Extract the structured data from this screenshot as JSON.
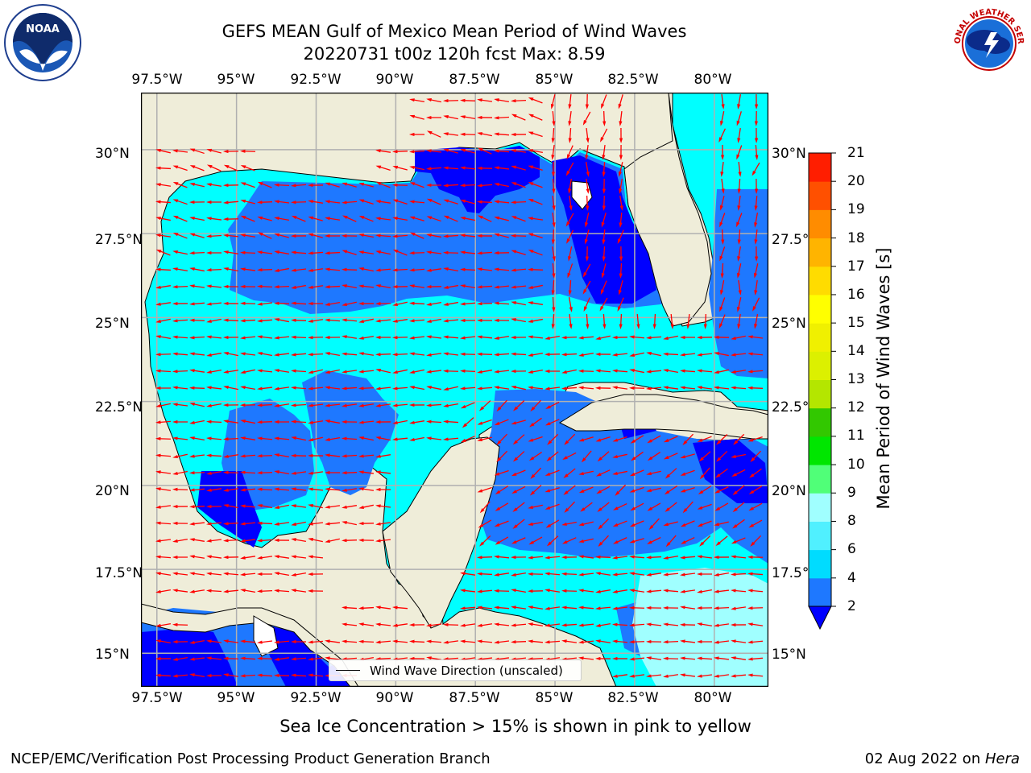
{
  "header": {
    "title_line1": "GEFS MEAN Gulf of Mexico Mean Period of Wind Waves",
    "title_line2": "20220731 t00z 120h fcst   Max: 8.59"
  },
  "logos": {
    "left": "NOAA",
    "right": "NATIONAL WEATHER SERVICE"
  },
  "map": {
    "lon_ticks": [
      "97.5°W",
      "95°W",
      "92.5°W",
      "90°W",
      "87.5°W",
      "85°W",
      "82.5°W",
      "80°W"
    ],
    "lat_ticks": [
      "30°N",
      "27.5°N",
      "25°N",
      "22.5°N",
      "20°N",
      "17.5°N",
      "15°N"
    ],
    "lon_range": [
      -98,
      -78.3
    ],
    "lat_range": [
      14,
      31.7
    ],
    "legend_label": "Wind Wave Direction (unscaled)",
    "colors": {
      "land": "#efedd9",
      "coast": "#000000",
      "arrow": "#ff0000",
      "grid": "#b0b0b0"
    }
  },
  "colorbar": {
    "label": "Mean Period of Wind Waves [s]",
    "tick_labels": [
      "2",
      "4",
      "6",
      "8",
      "9",
      "10",
      "11",
      "12",
      "13",
      "14",
      "15",
      "16",
      "17",
      "18",
      "19",
      "20",
      "21"
    ],
    "colors": [
      "#0000ff",
      "#1e78ff",
      "#00dcff",
      "#50f0ff",
      "#a0ffff",
      "#50ff78",
      "#00e600",
      "#32c800",
      "#b4e600",
      "#dcf000",
      "#f0f000",
      "#ffff00",
      "#ffdc00",
      "#ffb400",
      "#ff8c00",
      "#ff5000",
      "#ff1e00"
    ],
    "extend": "min"
  },
  "footer": {
    "caption": "Sea Ice Concentration > 15% is shown in pink to yellow",
    "left": "NCEP/EMC/Verification Post Processing Product Generation Branch",
    "right_prefix": "02 Aug 2022 on ",
    "right_machine": "Hera"
  }
}
